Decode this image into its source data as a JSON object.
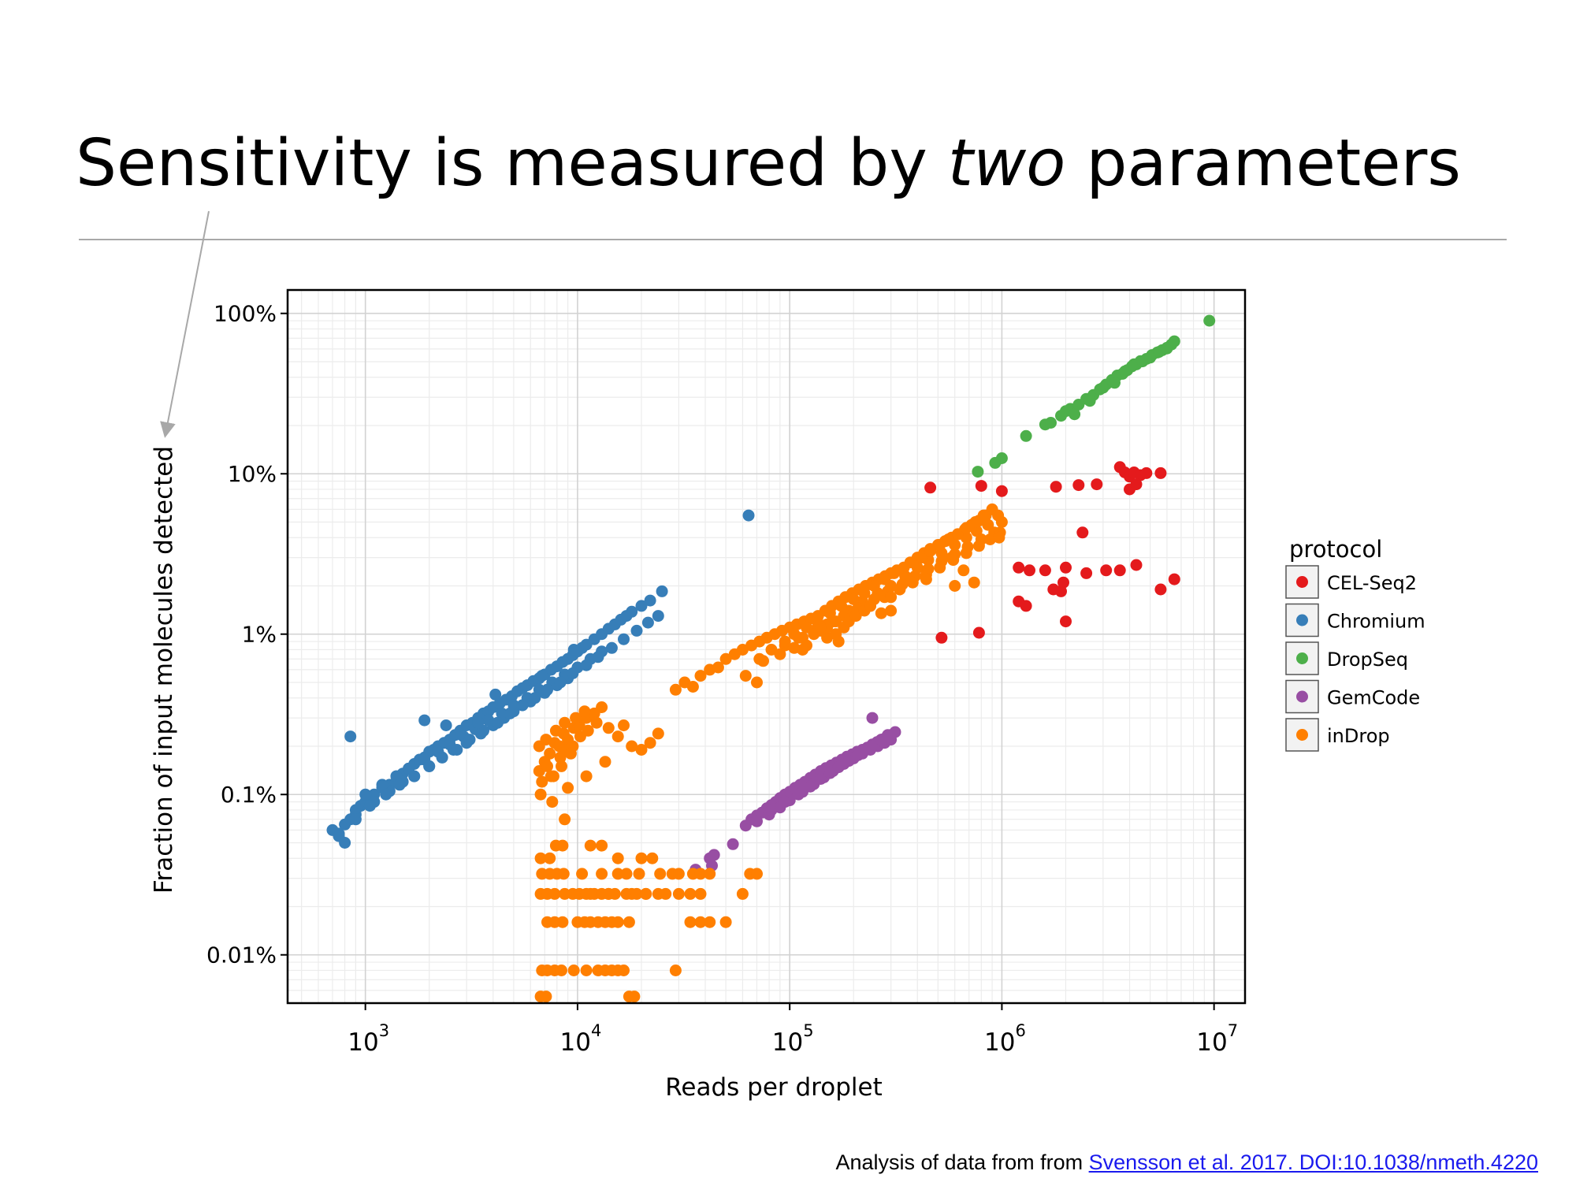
{
  "slide": {
    "title_pre": "Sensitivity is measured by ",
    "title_em": "two",
    "title_post": " parameters"
  },
  "caption": {
    "prefix": "Analysis of data from from ",
    "link_text": "Svensson et al. 2017. DOI:10.1038/nmeth.4220"
  },
  "chart_data": {
    "type": "scatter",
    "xlabel": "Reads per droplet",
    "ylabel": "Fraction of input molecules detected",
    "x_scale": "log",
    "y_scale": "log",
    "xlim": [
      430,
      14000000
    ],
    "ylim": [
      0.005,
      140
    ],
    "grid": true,
    "x_ticks": [
      {
        "value": 1000,
        "base": "10",
        "exp": "3"
      },
      {
        "value": 10000,
        "base": "10",
        "exp": "4"
      },
      {
        "value": 100000,
        "base": "10",
        "exp": "5"
      },
      {
        "value": 1000000,
        "base": "10",
        "exp": "6"
      },
      {
        "value": 10000000,
        "base": "10",
        "exp": "7"
      }
    ],
    "y_ticks": [
      {
        "value": 100,
        "label": "100%"
      },
      {
        "value": 10,
        "label": "10%"
      },
      {
        "value": 1,
        "label": "1%"
      },
      {
        "value": 0.1,
        "label": "0.1%"
      },
      {
        "value": 0.01,
        "label": "0.01%"
      }
    ],
    "legend": {
      "title": "protocol",
      "position": "right"
    },
    "series": [
      {
        "name": "CEL-Seq2",
        "color": "#e41a1c",
        "x": [
          460000,
          800000,
          1000000,
          1800000,
          2300000,
          2800000,
          3600000,
          3800000,
          4000000,
          4200000,
          4500000,
          4800000,
          5600000,
          4000000,
          4300000,
          1200000,
          1350000,
          1600000,
          2000000,
          2500000,
          3100000,
          3600000,
          4300000,
          5600000,
          6500000,
          1200000,
          1300000,
          1900000,
          2000000,
          520000,
          780000,
          1750000,
          1950000,
          2400000
        ],
        "y": [
          8.2,
          8.4,
          7.8,
          8.3,
          8.5,
          8.6,
          11,
          10.2,
          9.6,
          10.2,
          9.8,
          10.1,
          10.1,
          8.0,
          8.6,
          2.6,
          2.5,
          2.5,
          2.6,
          2.4,
          2.5,
          2.5,
          2.7,
          1.9,
          2.2,
          1.6,
          1.5,
          1.85,
          1.2,
          0.95,
          1.02,
          1.9,
          2.1,
          4.3
        ]
      },
      {
        "name": "Chromium",
        "color": "#377eb8",
        "x": [
          700,
          750,
          800,
          850,
          900,
          950,
          1000,
          1050,
          1100,
          1200,
          1300,
          1400,
          1500,
          1600,
          1700,
          1800,
          1900,
          2000,
          2100,
          2200,
          2350,
          2500,
          2650,
          2800,
          3000,
          3200,
          3400,
          3600,
          3800,
          4000,
          4300,
          4600,
          4900,
          5200,
          5500,
          5800,
          6200,
          6600,
          7000,
          7500,
          8000,
          8500,
          9000,
          9500,
          10000,
          10500,
          11000,
          12000,
          13000,
          14000,
          15000,
          16000,
          17000,
          18000,
          20000,
          22000,
          25000,
          900,
          1100,
          1300,
          1500,
          1700,
          2000,
          2300,
          2600,
          3000,
          3500,
          4000,
          4500,
          5000,
          5500,
          6000,
          7000,
          8000,
          9000,
          1000,
          1200,
          1400,
          1600,
          1900,
          2200,
          2500,
          2900,
          3300,
          3800,
          4400,
          5000,
          5800,
          6600,
          7600,
          8700,
          10000,
          11500,
          13000,
          750,
          900,
          1050,
          1250,
          1450,
          1700,
          2000,
          2300,
          2700,
          3100,
          3600,
          4200,
          4800,
          5500,
          6300,
          7200,
          8300,
          9500,
          11000,
          12500,
          14500,
          16500,
          19000,
          21500,
          24000,
          800,
          850,
          1900,
          3400,
          2400,
          4100,
          6800,
          9600,
          64000
        ],
        "y": [
          0.06,
          0.057,
          0.065,
          0.07,
          0.08,
          0.085,
          0.09,
          0.095,
          0.1,
          0.11,
          0.115,
          0.13,
          0.135,
          0.145,
          0.155,
          0.165,
          0.17,
          0.185,
          0.19,
          0.2,
          0.21,
          0.22,
          0.235,
          0.25,
          0.27,
          0.28,
          0.3,
          0.32,
          0.33,
          0.35,
          0.37,
          0.39,
          0.41,
          0.44,
          0.46,
          0.48,
          0.51,
          0.53,
          0.56,
          0.6,
          0.63,
          0.67,
          0.7,
          0.74,
          0.78,
          0.82,
          0.86,
          0.93,
          1.0,
          1.08,
          1.15,
          1.23,
          1.3,
          1.38,
          1.5,
          1.62,
          1.85,
          0.075,
          0.09,
          0.105,
          0.12,
          0.13,
          0.15,
          0.17,
          0.19,
          0.21,
          0.24,
          0.27,
          0.3,
          0.33,
          0.36,
          0.38,
          0.43,
          0.48,
          0.53,
          0.1,
          0.115,
          0.13,
          0.145,
          0.165,
          0.185,
          0.205,
          0.23,
          0.255,
          0.29,
          0.32,
          0.36,
          0.4,
          0.45,
          0.5,
          0.56,
          0.62,
          0.7,
          0.78,
          0.055,
          0.07,
          0.085,
          0.1,
          0.115,
          0.13,
          0.15,
          0.17,
          0.19,
          0.22,
          0.25,
          0.28,
          0.32,
          0.36,
          0.4,
          0.45,
          0.5,
          0.57,
          0.64,
          0.72,
          0.82,
          0.93,
          1.05,
          1.18,
          1.3,
          0.05,
          0.23,
          0.29,
          0.28,
          0.27,
          0.42,
          0.55,
          0.8,
          5.5
        ]
      },
      {
        "name": "DropSeq",
        "color": "#4daf4a",
        "x": [
          770000,
          930000,
          1000000,
          1300000,
          1600000,
          1700000,
          1900000,
          2000000,
          2100000,
          2300000,
          2500000,
          2700000,
          2900000,
          3100000,
          3300000,
          3500000,
          3700000,
          3900000,
          4100000,
          4300000,
          4500000,
          4800000,
          5100000,
          5400000,
          5700000,
          6000000,
          6300000,
          2200000,
          2600000,
          3000000,
          3400000,
          3800000,
          4200000,
          4600000,
          5000000,
          5500000,
          6000000,
          6500000,
          9500000
        ],
        "y": [
          10.3,
          11.7,
          12.5,
          17.2,
          20.3,
          20.8,
          23,
          24.6,
          25.4,
          27,
          29.3,
          31,
          33.6,
          36,
          38.4,
          41,
          42,
          44.3,
          46.7,
          48.1,
          50.4,
          52,
          55,
          57,
          59,
          61,
          64,
          23.5,
          28.5,
          34.4,
          36.9,
          43.5,
          48.2,
          50.2,
          53,
          57.5,
          60.5,
          67,
          90
        ]
      },
      {
        "name": "GemCode",
        "color": "#984ea3",
        "x": [
          36000,
          42000,
          43000,
          44000,
          54000,
          62000,
          66000,
          70000,
          74000,
          78000,
          82000,
          86000,
          90000,
          95000,
          100000,
          106000,
          112000,
          118000,
          125000,
          132000,
          140000,
          148000,
          157000,
          166000,
          176000,
          186000,
          197000,
          208000,
          220000,
          232000,
          245000,
          258000,
          272000,
          286000,
          300000,
          314000,
          70000,
          80000,
          90000,
          100000,
          115000,
          130000,
          145000,
          160000,
          180000,
          200000,
          220000,
          240000,
          260000,
          280000,
          300000,
          82000,
          95000,
          110000,
          125000,
          140000,
          155000,
          170000,
          190000,
          210000,
          230000,
          250000,
          270000,
          290000,
          245000
        ],
        "y": [
          0.034,
          0.04,
          0.036,
          0.042,
          0.049,
          0.064,
          0.07,
          0.074,
          0.077,
          0.082,
          0.086,
          0.09,
          0.095,
          0.1,
          0.104,
          0.11,
          0.115,
          0.12,
          0.127,
          0.133,
          0.14,
          0.146,
          0.152,
          0.158,
          0.165,
          0.172,
          0.178,
          0.185,
          0.19,
          0.196,
          0.205,
          0.212,
          0.22,
          0.228,
          0.235,
          0.245,
          0.068,
          0.075,
          0.083,
          0.092,
          0.104,
          0.116,
          0.128,
          0.14,
          0.155,
          0.168,
          0.18,
          0.19,
          0.2,
          0.21,
          0.22,
          0.08,
          0.09,
          0.1,
          0.112,
          0.125,
          0.136,
          0.148,
          0.162,
          0.176,
          0.19,
          0.205,
          0.22,
          0.235,
          0.3
        ]
      },
      {
        "name": "inDrop",
        "color": "#ff7f00",
        "x": [
          6600,
          7000,
          7400,
          7800,
          8200,
          8600,
          9000,
          9600,
          10200,
          11000,
          12000,
          13000,
          6800,
          7200,
          7700,
          8300,
          8900,
          9500,
          10300,
          11200,
          6700,
          7500,
          8400,
          9300,
          6600,
          7100,
          7900,
          8700,
          9800,
          10800,
          12300,
          14000,
          15500,
          16500,
          18000,
          20000,
          22000,
          24000,
          9000,
          11000,
          13500,
          7600,
          8700,
          29000,
          32000,
          35000,
          38000,
          42000,
          46000,
          50000,
          55000,
          60000,
          66000,
          72000,
          78000,
          85000,
          92000,
          100000,
          108000,
          117000,
          126000,
          136000,
          147000,
          158000,
          170000,
          183000,
          197000,
          212000,
          228000,
          245000,
          263000,
          282000,
          300000,
          320000,
          345000,
          370000,
          400000,
          430000,
          460000,
          500000,
          540000,
          580000,
          620000,
          670000,
          720000,
          780000,
          840000,
          900000,
          160000,
          190000,
          220000,
          260000,
          300000,
          350000,
          400000,
          450000,
          520000,
          600000,
          680000,
          760000,
          860000,
          960000,
          110000,
          130000,
          150000,
          180000,
          210000,
          250000,
          290000,
          340000,
          390000,
          450000,
          520000,
          600000,
          690000,
          800000,
          920000,
          95000,
          115000,
          140000,
          165000,
          200000,
          240000,
          280000,
          330000,
          380000,
          440000,
          510000,
          590000,
          680000,
          780000,
          880000,
          980000,
          72000,
          82000,
          95000,
          105000,
          120000,
          135000,
          155000,
          175000,
          200000,
          225000,
          250000,
          280000,
          310000,
          345000,
          380000,
          420000,
          460000,
          510000,
          560000,
          620000,
          680000,
          750000,
          820000,
          120000,
          150000,
          180000,
          75000,
          90000,
          105000,
          62000,
          130000,
          150000,
          170000,
          190000,
          205000,
          225000,
          240000,
          270000,
          300000,
          330000,
          1000000,
          600000,
          660000,
          740000,
          440000,
          580000,
          970000,
          165000,
          115000,
          300000,
          70000,
          140000,
          6700,
          7400,
          7900,
          8500,
          11500,
          13000,
          15500,
          17000,
          20000,
          22500,
          24500,
          28000,
          30000,
          35000,
          38000,
          6800,
          7400,
          8000,
          8600,
          10500,
          11500,
          13000,
          14000,
          15500,
          18000,
          19500,
          21000,
          24000,
          42000,
          60000,
          65000,
          70000,
          6700,
          7200,
          7800,
          8700,
          9500,
          10200,
          11000,
          12000,
          13000,
          14000,
          15000,
          17000,
          19000,
          21000,
          26000,
          30000,
          34000,
          38000,
          7200,
          7800,
          8500,
          10000,
          10800,
          11500,
          12500,
          13500,
          14500,
          15500,
          17500,
          34000,
          38000,
          42000,
          50000,
          6800,
          7200,
          7800,
          8400,
          9600,
          11000,
          12500,
          13500,
          14500,
          15500,
          16500,
          29000,
          6700,
          7100,
          17500,
          18500
        ],
        "y": [
          0.14,
          0.16,
          0.18,
          0.21,
          0.2,
          0.24,
          0.22,
          0.26,
          0.27,
          0.3,
          0.32,
          0.35,
          0.12,
          0.15,
          0.13,
          0.17,
          0.19,
          0.2,
          0.23,
          0.25,
          0.1,
          0.13,
          0.15,
          0.18,
          0.2,
          0.22,
          0.25,
          0.28,
          0.3,
          0.33,
          0.28,
          0.26,
          0.23,
          0.27,
          0.2,
          0.19,
          0.21,
          0.24,
          0.11,
          0.13,
          0.16,
          0.09,
          0.07,
          0.45,
          0.5,
          0.47,
          0.55,
          0.6,
          0.62,
          0.7,
          0.75,
          0.8,
          0.85,
          0.9,
          0.95,
          1.0,
          1.05,
          1.1,
          1.15,
          1.2,
          1.25,
          1.3,
          1.4,
          1.5,
          1.6,
          1.7,
          1.8,
          1.9,
          2.0,
          2.1,
          2.2,
          2.3,
          2.4,
          2.5,
          2.6,
          2.8,
          3.0,
          3.2,
          3.4,
          3.6,
          3.8,
          4.0,
          4.2,
          4.5,
          4.8,
          5.1,
          5.5,
          6.0,
          1.2,
          1.4,
          1.6,
          1.8,
          2.0,
          2.3,
          2.6,
          2.9,
          3.2,
          3.6,
          4.0,
          4.4,
          4.8,
          5.5,
          0.95,
          1.05,
          1.15,
          1.3,
          1.45,
          1.65,
          1.85,
          2.05,
          2.3,
          2.55,
          2.85,
          3.15,
          3.5,
          3.9,
          4.3,
          0.85,
          0.95,
          1.05,
          1.2,
          1.35,
          1.5,
          1.7,
          1.9,
          2.1,
          2.35,
          2.6,
          2.9,
          3.2,
          3.55,
          3.9,
          4.3,
          0.7,
          0.8,
          0.9,
          1.0,
          1.1,
          1.2,
          1.35,
          1.5,
          1.65,
          1.8,
          2.0,
          2.2,
          2.4,
          2.6,
          2.8,
          3.0,
          3.3,
          3.6,
          3.9,
          4.2,
          4.6,
          5.0,
          5.5,
          0.85,
          0.95,
          1.1,
          0.68,
          0.75,
          0.82,
          0.55,
          1.0,
          1.1,
          0.9,
          1.2,
          1.3,
          1.4,
          1.5,
          1.35,
          1.7,
          1.9,
          5.0,
          2.0,
          2.5,
          2.1,
          2.2,
          3.0,
          4.0,
          1.0,
          0.8,
          1.4,
          0.5,
          1.1,
          0.04,
          0.04,
          0.048,
          0.048,
          0.048,
          0.048,
          0.04,
          0.032,
          0.04,
          0.04,
          0.032,
          0.032,
          0.032,
          0.032,
          0.032,
          0.032,
          0.032,
          0.032,
          0.032,
          0.032,
          0.024,
          0.032,
          0.024,
          0.032,
          0.024,
          0.032,
          0.024,
          0.024,
          0.032,
          0.024,
          0.032,
          0.032,
          0.024,
          0.024,
          0.024,
          0.024,
          0.024,
          0.024,
          0.024,
          0.024,
          0.024,
          0.024,
          0.024,
          0.024,
          0.024,
          0.024,
          0.024,
          0.024,
          0.024,
          0.024,
          0.016,
          0.016,
          0.016,
          0.016,
          0.016,
          0.016,
          0.016,
          0.016,
          0.016,
          0.016,
          0.016,
          0.016,
          0.016,
          0.016,
          0.016,
          0.008,
          0.008,
          0.008,
          0.008,
          0.008,
          0.008,
          0.008,
          0.008,
          0.008,
          0.008,
          0.008,
          0.008,
          0.0055,
          0.0055,
          0.0055,
          0.0055
        ]
      }
    ]
  }
}
